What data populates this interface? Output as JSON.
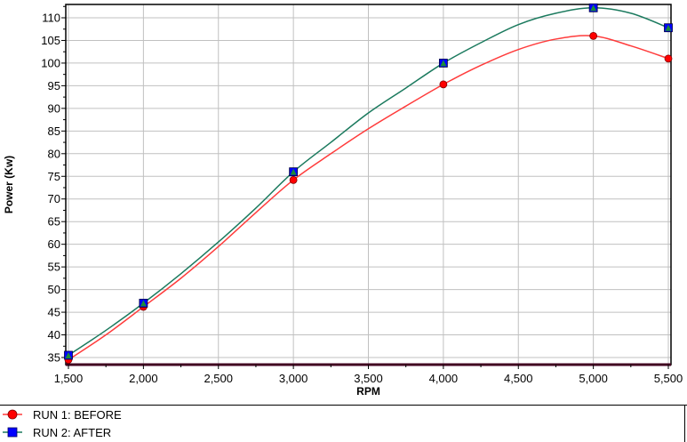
{
  "chart_data": {
    "type": "line",
    "title": "",
    "xlabel": "RPM",
    "ylabel": "Power (Kw)",
    "xlim": [
      1500,
      5500
    ],
    "ylim": [
      33.4,
      113
    ],
    "x_ticks": [
      1500,
      2000,
      2500,
      3000,
      3500,
      4000,
      4500,
      5000,
      5500
    ],
    "x_tick_labels": [
      "1,500",
      "2,000",
      "2,500",
      "3,000",
      "3,500",
      "4,000",
      "4,500",
      "5,000",
      "5,500"
    ],
    "y_ticks": [
      35,
      40,
      45,
      50,
      55,
      60,
      65,
      70,
      75,
      80,
      85,
      90,
      95,
      100,
      105,
      110
    ],
    "y_tick_labels": [
      "35",
      "40",
      "45",
      "50",
      "55",
      "60",
      "65",
      "70",
      "75",
      "80",
      "85",
      "90",
      "95",
      "100",
      "105",
      "110"
    ],
    "grid": true,
    "legend_placement": "bottom",
    "series": [
      {
        "name": "RUN 1: BEFORE",
        "color": "#ff3b3b",
        "marker": "circle",
        "marker_color": "#ff0000",
        "markers": {
          "x": [
            1500,
            2000,
            3000,
            4000,
            5000,
            5500
          ],
          "y": [
            34.5,
            46.2,
            74.2,
            95.3,
            106,
            101
          ]
        },
        "curve": {
          "x": [
            1500,
            1750,
            2000,
            2250,
            2500,
            2750,
            3000,
            3250,
            3500,
            3750,
            4000,
            4250,
            4500,
            4750,
            5000,
            5250,
            5500
          ],
          "y": [
            34.5,
            40,
            46.2,
            52.5,
            59.5,
            67,
            74.2,
            80,
            85.5,
            90.5,
            95.3,
            99.5,
            103,
            105.3,
            106,
            103.8,
            101
          ]
        }
      },
      {
        "name": "RUN 2: AFTER",
        "color": "#1b7a5e",
        "marker": "square",
        "marker_color": "#0000ff",
        "markers": {
          "x": [
            1500,
            2000,
            3000,
            4000,
            5000,
            5500
          ],
          "y": [
            35.5,
            47,
            76,
            100,
            112.2,
            107.8
          ]
        },
        "curve": {
          "x": [
            1500,
            1750,
            2000,
            2250,
            2500,
            2750,
            3000,
            3250,
            3500,
            3750,
            4000,
            4250,
            4500,
            4750,
            5000,
            5250,
            5500
          ],
          "y": [
            35.5,
            41,
            47,
            53.5,
            60.5,
            68,
            76,
            82.5,
            89,
            94.5,
            100,
            104.5,
            108.5,
            111,
            112.2,
            111,
            107.8
          ]
        }
      }
    ]
  }
}
